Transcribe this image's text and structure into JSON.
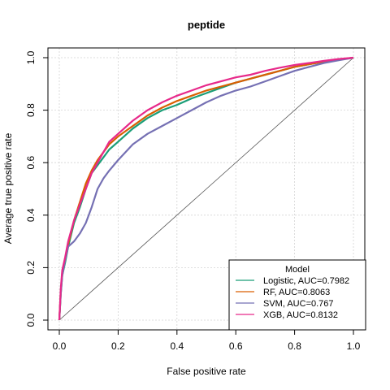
{
  "chart_data": {
    "type": "line",
    "title": "peptide",
    "xlabel": "False positive rate",
    "ylabel": "Average true positive rate",
    "xlim": [
      0,
      1
    ],
    "ylim": [
      0,
      1
    ],
    "xticks": [
      "0.0",
      "0.2",
      "0.4",
      "0.6",
      "0.8",
      "1.0"
    ],
    "yticks": [
      "0.0",
      "0.2",
      "0.4",
      "0.6",
      "0.8",
      "1.0"
    ],
    "grid": true,
    "diagonal_reference": true,
    "legend": {
      "title": "Model",
      "position": "bottom-right"
    },
    "series": [
      {
        "name": "Logistic, AUC=0.7982",
        "color": "#1b9e77",
        "x": [
          0,
          0.005,
          0.01,
          0.02,
          0.03,
          0.05,
          0.07,
          0.09,
          0.11,
          0.13,
          0.15,
          0.17,
          0.2,
          0.25,
          0.3,
          0.35,
          0.4,
          0.45,
          0.5,
          0.55,
          0.6,
          0.65,
          0.7,
          0.75,
          0.8,
          0.85,
          0.9,
          0.95,
          1.0
        ],
        "y": [
          0,
          0.1,
          0.17,
          0.22,
          0.28,
          0.37,
          0.43,
          0.5,
          0.56,
          0.59,
          0.62,
          0.65,
          0.68,
          0.73,
          0.77,
          0.8,
          0.82,
          0.845,
          0.865,
          0.885,
          0.905,
          0.92,
          0.935,
          0.95,
          0.965,
          0.975,
          0.985,
          0.993,
          1.0
        ]
      },
      {
        "name": "RF, AUC=0.8063",
        "color": "#d95f02",
        "x": [
          0,
          0.005,
          0.01,
          0.02,
          0.03,
          0.05,
          0.07,
          0.09,
          0.11,
          0.13,
          0.15,
          0.17,
          0.2,
          0.25,
          0.3,
          0.35,
          0.4,
          0.45,
          0.5,
          0.55,
          0.6,
          0.65,
          0.7,
          0.75,
          0.8,
          0.85,
          0.9,
          0.95,
          1.0
        ],
        "y": [
          0,
          0.11,
          0.18,
          0.23,
          0.29,
          0.38,
          0.45,
          0.52,
          0.57,
          0.61,
          0.64,
          0.67,
          0.7,
          0.74,
          0.78,
          0.81,
          0.835,
          0.855,
          0.875,
          0.89,
          0.905,
          0.92,
          0.935,
          0.95,
          0.965,
          0.975,
          0.985,
          0.993,
          1.0
        ]
      },
      {
        "name": "SVM, AUC=0.767",
        "color": "#7570b3",
        "x": [
          0,
          0.005,
          0.01,
          0.02,
          0.03,
          0.05,
          0.07,
          0.09,
          0.11,
          0.13,
          0.15,
          0.17,
          0.2,
          0.25,
          0.3,
          0.35,
          0.4,
          0.45,
          0.5,
          0.55,
          0.6,
          0.65,
          0.7,
          0.75,
          0.8,
          0.85,
          0.9,
          0.95,
          1.0
        ],
        "y": [
          0,
          0.1,
          0.17,
          0.23,
          0.28,
          0.3,
          0.33,
          0.37,
          0.43,
          0.5,
          0.54,
          0.57,
          0.61,
          0.67,
          0.71,
          0.74,
          0.77,
          0.8,
          0.83,
          0.855,
          0.875,
          0.89,
          0.91,
          0.93,
          0.95,
          0.965,
          0.98,
          0.99,
          1.0
        ]
      },
      {
        "name": "XGB, AUC=0.8132",
        "color": "#e7298a",
        "x": [
          0,
          0.005,
          0.01,
          0.02,
          0.03,
          0.05,
          0.07,
          0.09,
          0.11,
          0.13,
          0.15,
          0.17,
          0.2,
          0.25,
          0.3,
          0.35,
          0.4,
          0.45,
          0.5,
          0.55,
          0.6,
          0.65,
          0.7,
          0.75,
          0.8,
          0.85,
          0.9,
          0.95,
          1.0
        ],
        "y": [
          0,
          0.12,
          0.19,
          0.24,
          0.3,
          0.38,
          0.44,
          0.5,
          0.56,
          0.6,
          0.64,
          0.68,
          0.71,
          0.76,
          0.8,
          0.83,
          0.855,
          0.875,
          0.895,
          0.91,
          0.925,
          0.935,
          0.95,
          0.962,
          0.972,
          0.98,
          0.988,
          0.995,
          1.0
        ]
      }
    ]
  }
}
